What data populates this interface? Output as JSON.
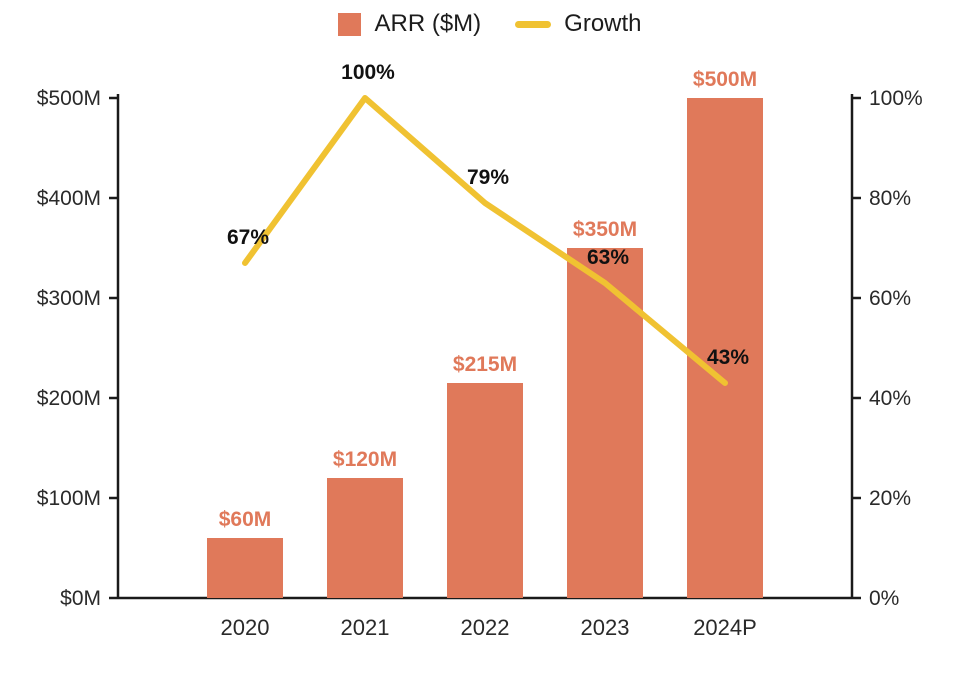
{
  "chart_data": {
    "type": "bar",
    "subtype": "bar-line-combo",
    "title": "",
    "categories": [
      "2020",
      "2021",
      "2022",
      "2023",
      "2024P"
    ],
    "series": [
      {
        "name": "ARR ($M)",
        "type": "bar",
        "axis": "left",
        "values": [
          60,
          120,
          215,
          350,
          500
        ],
        "labels": [
          "$60M",
          "$120M",
          "$215M",
          "$350M",
          "$500M"
        ],
        "color": "#E0795A"
      },
      {
        "name": "Growth",
        "type": "line",
        "axis": "right",
        "values": [
          67,
          100,
          79,
          63,
          43
        ],
        "labels": [
          "67%",
          "100%",
          "79%",
          "63%",
          "43%"
        ],
        "color": "#F0C232"
      }
    ],
    "left_axis": {
      "min": 0,
      "max": 500,
      "tick_labels": [
        "$0M",
        "$100M",
        "$200M",
        "$300M",
        "$400M",
        "$500M"
      ]
    },
    "right_axis": {
      "min": 0,
      "max": 100,
      "tick_labels": [
        "0%",
        "20%",
        "40%",
        "60%",
        "80%",
        "100%"
      ]
    },
    "legend": [
      {
        "label": "ARR ($M)",
        "marker": "square",
        "color": "#E0795A"
      },
      {
        "label": "Growth",
        "marker": "line",
        "color": "#F0C232"
      }
    ],
    "legend_position": "top",
    "grid": false,
    "colors": {
      "axis": "#1a1a1a",
      "tick_text": "#2a2a2a",
      "bar_label_text": "#E0795A",
      "line_label_text": "#111111"
    }
  }
}
